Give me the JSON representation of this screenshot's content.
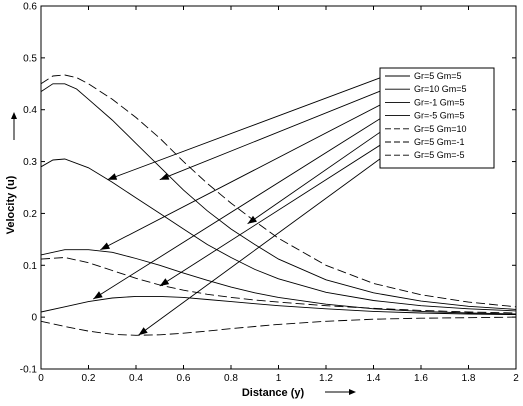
{
  "chart_data": {
    "type": "line",
    "title": "",
    "xlabel": "Distance (y)",
    "ylabel": "Velocity (u)",
    "xlim": [
      0,
      2
    ],
    "ylim": [
      -0.1,
      0.6
    ],
    "xticks": [
      "0",
      "0.2",
      "0.4",
      "0.6",
      "0.8",
      "1",
      "1.2",
      "1.4",
      "1.6",
      "1.8",
      "2"
    ],
    "yticks": [
      "-0.1",
      "0",
      "0.1",
      "0.2",
      "0.3",
      "0.4",
      "0.5",
      "0.6"
    ],
    "grid": false,
    "legend_position": "top-right",
    "series": [
      {
        "name": "Gr=5 Gm=5",
        "style": "solid",
        "x": [
          0,
          0.05,
          0.1,
          0.2,
          0.3,
          0.4,
          0.5,
          0.6,
          0.7,
          0.8,
          0.9,
          1.0,
          1.2,
          1.4,
          1.6,
          1.8,
          2.0
        ],
        "y": [
          0.29,
          0.303,
          0.305,
          0.288,
          0.26,
          0.23,
          0.2,
          0.17,
          0.14,
          0.115,
          0.092,
          0.074,
          0.048,
          0.032,
          0.022,
          0.016,
          0.012
        ]
      },
      {
        "name": "Gr=10 Gm=5",
        "style": "solid",
        "x": [
          0,
          0.05,
          0.1,
          0.15,
          0.2,
          0.3,
          0.4,
          0.5,
          0.6,
          0.7,
          0.8,
          0.9,
          1.0,
          1.2,
          1.4,
          1.6,
          1.8,
          2.0
        ],
        "y": [
          0.435,
          0.45,
          0.45,
          0.44,
          0.42,
          0.38,
          0.335,
          0.29,
          0.245,
          0.205,
          0.17,
          0.14,
          0.112,
          0.072,
          0.047,
          0.031,
          0.021,
          0.015
        ]
      },
      {
        "name": "Gr=-1 Gm=5",
        "style": "solid",
        "x": [
          0,
          0.1,
          0.2,
          0.3,
          0.4,
          0.5,
          0.6,
          0.7,
          0.8,
          0.9,
          1.0,
          1.2,
          1.4,
          1.6,
          1.8,
          2.0
        ],
        "y": [
          0.12,
          0.13,
          0.13,
          0.125,
          0.113,
          0.1,
          0.085,
          0.071,
          0.058,
          0.047,
          0.038,
          0.025,
          0.016,
          0.011,
          0.008,
          0.006
        ]
      },
      {
        "name": "Gr=-5 Gm=5",
        "style": "solid",
        "x": [
          0,
          0.1,
          0.2,
          0.3,
          0.4,
          0.5,
          0.6,
          0.7,
          0.8,
          0.9,
          1.0,
          1.2,
          1.4,
          1.6,
          1.8,
          2.0
        ],
        "y": [
          0.01,
          0.02,
          0.03,
          0.037,
          0.04,
          0.04,
          0.038,
          0.034,
          0.03,
          0.026,
          0.022,
          0.016,
          0.011,
          0.008,
          0.006,
          0.005
        ]
      },
      {
        "name": "Gr=5 Gm=10",
        "style": "dashed",
        "x": [
          0,
          0.05,
          0.1,
          0.15,
          0.2,
          0.3,
          0.4,
          0.5,
          0.6,
          0.7,
          0.8,
          0.9,
          1.0,
          1.2,
          1.4,
          1.6,
          1.8,
          2.0
        ],
        "y": [
          0.45,
          0.465,
          0.467,
          0.462,
          0.45,
          0.42,
          0.385,
          0.345,
          0.3,
          0.258,
          0.22,
          0.185,
          0.152,
          0.1,
          0.065,
          0.043,
          0.029,
          0.02
        ]
      },
      {
        "name": "Gr=5 Gm=-1",
        "style": "dashed",
        "x": [
          0,
          0.1,
          0.2,
          0.3,
          0.4,
          0.5,
          0.6,
          0.7,
          0.8,
          0.9,
          1.0,
          1.2,
          1.4,
          1.6,
          1.8,
          2.0
        ],
        "y": [
          0.112,
          0.115,
          0.105,
          0.09,
          0.075,
          0.062,
          0.052,
          0.044,
          0.038,
          0.033,
          0.029,
          0.022,
          0.017,
          0.013,
          0.01,
          0.008
        ]
      },
      {
        "name": "Gr=5 Gm=-5",
        "style": "dashed",
        "x": [
          0,
          0.1,
          0.2,
          0.3,
          0.4,
          0.5,
          0.6,
          0.7,
          0.8,
          0.9,
          1.0,
          1.2,
          1.4,
          1.6,
          1.8,
          2.0
        ],
        "y": [
          -0.008,
          -0.018,
          -0.027,
          -0.033,
          -0.035,
          -0.034,
          -0.031,
          -0.027,
          -0.022,
          -0.018,
          -0.014,
          -0.008,
          -0.004,
          -0.002,
          -0.001,
          0.0
        ]
      }
    ],
    "annotations": {
      "arrows": [
        {
          "label": "Gr=5 Gm=5",
          "to": [
            0.28,
            0.265
          ]
        },
        {
          "label": "Gr=10 Gm=5",
          "to": [
            0.5,
            0.265
          ]
        },
        {
          "label": "Gr=-1 Gm=5",
          "to": [
            0.25,
            0.13
          ]
        },
        {
          "label": "Gr=-5 Gm=5",
          "to": [
            0.22,
            0.035
          ]
        },
        {
          "label": "Gr=5 Gm=10",
          "to": [
            0.87,
            0.18
          ]
        },
        {
          "label": "Gr=5 Gm=-1",
          "to": [
            0.5,
            0.06
          ]
        },
        {
          "label": "Gr=5 Gm=-5",
          "to": [
            0.41,
            -0.035
          ]
        }
      ]
    }
  }
}
